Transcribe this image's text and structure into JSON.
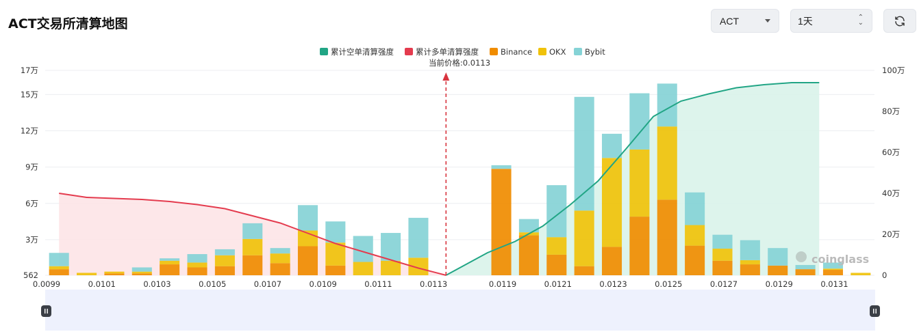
{
  "header": {
    "title": "ACT交易所清算地图",
    "symbol_select": "ACT",
    "range_select": "1天"
  },
  "colors": {
    "binance": "#f08c00",
    "okx": "#f0c20a",
    "bybit": "#85d3d6",
    "short_cum": "#21a585",
    "long_cum": "#e43b4e",
    "short_area": "#d9f3ea",
    "long_area": "#fde4e7",
    "zoom_bg": "#eef1fd"
  },
  "watermark": "coinglass",
  "chart_data": {
    "type": "bar",
    "legend": [
      "累计空单清算强度",
      "累计多单清算强度",
      "Binance",
      "OKX",
      "Bybit"
    ],
    "current_price_label": "当前价格:0.0113",
    "current_price": 0.0113,
    "current_price_index": 14,
    "y_left_ticks": [
      "17万",
      "15万",
      "12万",
      "9万",
      "6万",
      "3万",
      "562"
    ],
    "y_left_range": [
      562,
      170000
    ],
    "y_right_ticks": [
      "100万",
      "80万",
      "60万",
      "40万",
      "20万",
      "0"
    ],
    "y_right_range": [
      0,
      1000000
    ],
    "x_tick_labels": [
      "0.0099",
      "0.0101",
      "0.0103",
      "0.0105",
      "0.0107",
      "0.0109",
      "0.0111",
      "0.0113",
      "0.0119",
      "0.0121",
      "0.0123",
      "0.0125",
      "0.0127",
      "0.0129",
      "0.0131"
    ],
    "grid": true,
    "legend_position": "top-center",
    "x_count": 30,
    "series": [
      {
        "name": "Binance",
        "values": [
          5000,
          0,
          1500,
          1500,
          9000,
          6500,
          7500,
          16500,
          10000,
          24000,
          8000,
          0,
          0,
          0,
          0,
          0,
          88000,
          33000,
          17000,
          7500,
          23500,
          48500,
          62500,
          24500,
          12000,
          9000,
          8000,
          5000,
          4500,
          0
        ]
      },
      {
        "name": "OKX",
        "values": [
          2500,
          2000,
          1500,
          1500,
          3000,
          4000,
          9000,
          13500,
          8000,
          13000,
          19000,
          11000,
          12000,
          14500,
          0,
          0,
          0,
          2500,
          14500,
          46000,
          73500,
          55500,
          60500,
          17000,
          10000,
          3500,
          0,
          0,
          1000,
          2000
        ]
      },
      {
        "name": "Bybit",
        "values": [
          11000,
          0,
          0,
          3500,
          2000,
          7000,
          5000,
          13000,
          4500,
          21000,
          17500,
          21500,
          23000,
          33000,
          0,
          0,
          3000,
          11000,
          43000,
          94000,
          20000,
          46500,
          35500,
          27000,
          11500,
          16500,
          14500,
          3500,
          5000,
          0
        ]
      }
    ],
    "cumulative_long": [
      400000,
      380000,
      375000,
      370000,
      360000,
      345000,
      325000,
      290000,
      255000,
      205000,
      155000,
      115000,
      75000,
      35000,
      0
    ],
    "cumulative_short": [
      0,
      110000,
      165000,
      240000,
      345000,
      460000,
      615000,
      775000,
      850000,
      885000,
      915000,
      930000,
      940000,
      940000
    ]
  }
}
